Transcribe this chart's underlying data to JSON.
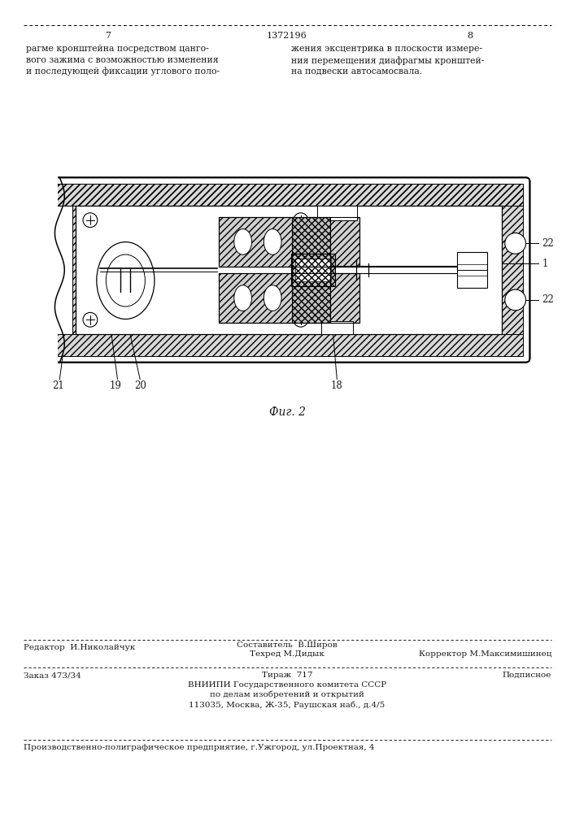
{
  "page_width": 7.07,
  "page_height": 10.0,
  "bg_color": "#ffffff",
  "header_page_left": "7",
  "header_patent_num": "1372196",
  "header_page_right": "8",
  "header_text_left": "рагме кронштейна посредством цанго-\nвого зажима с возможностью изменения\nи последующей фиксации углового поло-",
  "header_text_right": "жения эксцентрика в плоскости измере-\nния перемещения диафрагмы кронштей-\nна подвески автосамосвала.",
  "fig_caption": "Фиг. 2",
  "footer_line1_left": "Редактор  И.Николайчук",
  "footer_composit": "Составитель  В.Широв",
  "footer_techred": "Техред М.Дидык",
  "footer_corrector": "Корректор М.Максимишинец",
  "footer_order": "Заказ 473/34",
  "footer_tirazh": "Тираж  717",
  "footer_podpisnoe": "Подписное",
  "footer_vniipи": "ВНИИПИ Государственного комитета СССР\nпо делам изобретений и открытий\n113035, Москва, Ж-35, Раушская наб., д.4/5",
  "footer_bottom": "Производственно-полиграфическое предприятие, г.Ужгород, ул.Проектная, 4",
  "lc": "#000000",
  "dc": "#1a1a1a"
}
